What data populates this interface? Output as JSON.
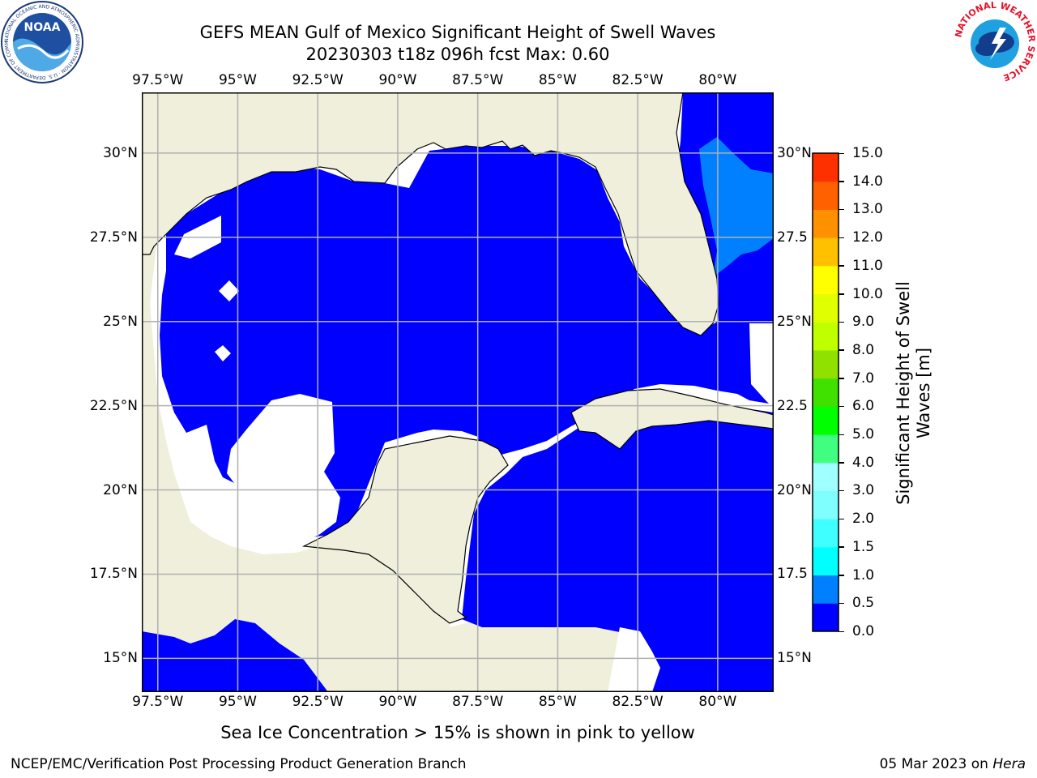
{
  "title": {
    "line1": "GEFS MEAN Gulf of Mexico Significant Height of Swell Waves",
    "line2": "20230303 t18z 096h fcst   Max: 0.60"
  },
  "map": {
    "lon_range": [
      -98.0,
      -78.25
    ],
    "lat_range": [
      14.0,
      31.8
    ],
    "grid": true,
    "lon_ticks": [
      {
        "value": -97.5,
        "label": "97.5°W"
      },
      {
        "value": -95.0,
        "label": "95°W"
      },
      {
        "value": -92.5,
        "label": "92.5°W"
      },
      {
        "value": -90.0,
        "label": "90°W"
      },
      {
        "value": -87.5,
        "label": "87.5°W"
      },
      {
        "value": -85.0,
        "label": "85°W"
      },
      {
        "value": -82.5,
        "label": "82.5°W"
      },
      {
        "value": -80.0,
        "label": "80°W"
      }
    ],
    "lat_ticks_left": [
      {
        "value": 30.0,
        "label": "30°N"
      },
      {
        "value": 27.5,
        "label": "27.5°N"
      },
      {
        "value": 25.0,
        "label": "25°N"
      },
      {
        "value": 22.5,
        "label": "22.5°N"
      },
      {
        "value": 20.0,
        "label": "20°N"
      },
      {
        "value": 17.5,
        "label": "17.5°N"
      },
      {
        "value": 15.0,
        "label": "15°N"
      }
    ],
    "lat_ticks_right": [
      {
        "value": 30.0,
        "label": "30°N"
      },
      {
        "value": 27.5,
        "label": "27.5"
      },
      {
        "value": 25.0,
        "label": "25°N"
      },
      {
        "value": 22.5,
        "label": "22.5"
      },
      {
        "value": 20.0,
        "label": "20°N"
      },
      {
        "value": 17.5,
        "label": "17.5"
      },
      {
        "value": 15.0,
        "label": "15°N"
      }
    ],
    "colors": {
      "land": "#efefdc",
      "sea_0": "#0000ff",
      "sea_05": "#0080ff",
      "no_data": "#ffffff",
      "coast": "#000000",
      "grid": "#b0b0b0"
    }
  },
  "colorbar": {
    "label_line1": "Significant Height of Swell",
    "label_line2": "Waves [m]",
    "levels": [
      0.0,
      0.5,
      1.0,
      1.5,
      2.0,
      3.0,
      4.0,
      5.0,
      6.0,
      7.0,
      8.0,
      9.0,
      10.0,
      11.0,
      12.0,
      13.0,
      14.0,
      15.0
    ],
    "labels": [
      "0.0",
      "0.5",
      "1.0",
      "1.5",
      "2.0",
      "3.0",
      "4.0",
      "5.0",
      "6.0",
      "7.0",
      "8.0",
      "9.0",
      "10.0",
      "11.0",
      "12.0",
      "13.0",
      "14.0",
      "15.0"
    ],
    "colors": [
      "#0000ff",
      "#0080ff",
      "#00ffff",
      "#40ffff",
      "#80ffff",
      "#a0ffff",
      "#40ff80",
      "#00ff00",
      "#40e000",
      "#90e000",
      "#c0ff00",
      "#e0ff00",
      "#ffff00",
      "#ffc000",
      "#ff9000",
      "#ff6000",
      "#ff3000",
      "#ff0000"
    ]
  },
  "logos": {
    "noara_text": "NOAA",
    "noaa_ring": "NATIONAL OCEANIC AND ATMOSPHERIC ADMINISTRATION · U.S. DEPARTMENT OF COMMERCE",
    "nws_ring": "NATIONAL WEATHER SERVICE"
  },
  "note": "Sea Ice Concentration > 15% is shown in pink to yellow",
  "footer": {
    "left": "NCEP/EMC/Verification Post Processing Product Generation Branch",
    "right_date": "05 Mar 2023 on ",
    "right_host": "Hera"
  }
}
